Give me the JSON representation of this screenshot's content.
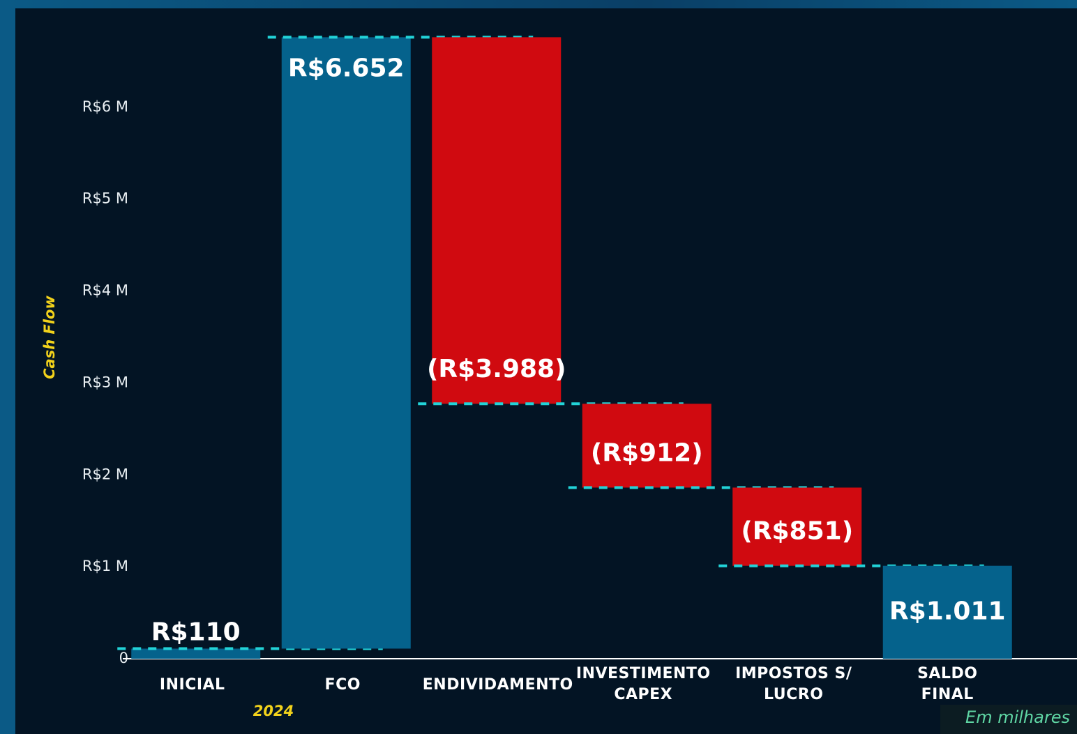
{
  "chart_data": {
    "type": "waterfall",
    "y_label": "Cash Flow",
    "x_label": "2024",
    "note": "Em milhares",
    "categories": [
      "INICIAL",
      "FCO",
      "ENDIVIDAMENTO",
      "INVESTIMENTO CAPEX",
      "IMPOSTOS S/ LUCRO",
      "SALDO FINAL"
    ],
    "measure": [
      "absolute",
      "relative",
      "relative",
      "relative",
      "relative",
      "total"
    ],
    "values": [
      110,
      6652,
      -3988,
      -912,
      -851,
      1011
    ],
    "value_labels": [
      "R$110",
      "R$6.652",
      "(R$3.988)",
      "(R$912)",
      "(R$851)",
      "R$1.011"
    ],
    "colors": {
      "increase": "#05628c",
      "decrease": "#d00a10",
      "total": "#05628c",
      "connector": "#22d3d8"
    },
    "ylim": [
      0,
      7000
    ],
    "yticks": [
      0,
      {
        "value": 1000,
        "label": "R$1 M"
      },
      {
        "value": 2000,
        "label": "R$2 M"
      },
      {
        "value": 3000,
        "label": "R$3 M"
      },
      {
        "value": 4000,
        "label": "R$4 M"
      },
      {
        "value": 5000,
        "label": "R$5 M"
      },
      {
        "value": 6000,
        "label": "R$6 M"
      }
    ],
    "grid": false
  }
}
